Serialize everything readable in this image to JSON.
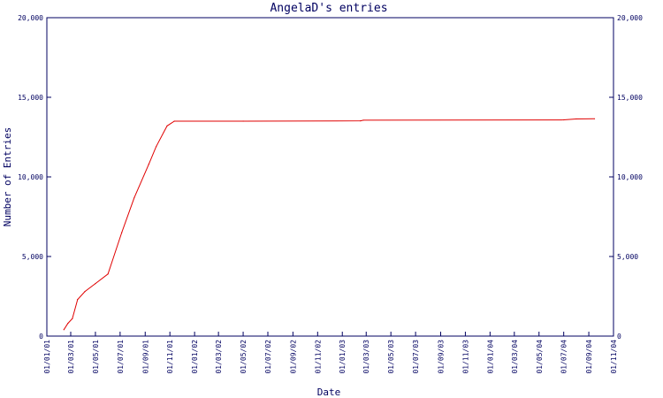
{
  "chart_data": {
    "type": "line",
    "title": "AngelaD's entries",
    "xlabel": "Date",
    "ylabel": "Number of Entries",
    "ylim": [
      0,
      20000
    ],
    "xlim": [
      "2001-01-01",
      "2004-11-01"
    ],
    "y_ticks": [
      {
        "value": 0,
        "label": "0"
      },
      {
        "value": 5000,
        "label": "5,000"
      },
      {
        "value": 10000,
        "label": "10,000"
      },
      {
        "value": 15000,
        "label": "15,000"
      },
      {
        "value": 20000,
        "label": "20,000"
      }
    ],
    "x_ticks": [
      {
        "date": "2001-01-01",
        "label": "01/01/01"
      },
      {
        "date": "2001-03-01",
        "label": "01/03/01"
      },
      {
        "date": "2001-05-01",
        "label": "01/05/01"
      },
      {
        "date": "2001-07-01",
        "label": "01/07/01"
      },
      {
        "date": "2001-09-01",
        "label": "01/09/01"
      },
      {
        "date": "2001-11-01",
        "label": "01/11/01"
      },
      {
        "date": "2002-01-01",
        "label": "01/01/02"
      },
      {
        "date": "2002-03-01",
        "label": "01/03/02"
      },
      {
        "date": "2002-05-01",
        "label": "01/05/02"
      },
      {
        "date": "2002-07-01",
        "label": "01/07/02"
      },
      {
        "date": "2002-09-01",
        "label": "01/09/02"
      },
      {
        "date": "2002-11-01",
        "label": "01/11/02"
      },
      {
        "date": "2003-01-01",
        "label": "01/01/03"
      },
      {
        "date": "2003-03-01",
        "label": "01/03/03"
      },
      {
        "date": "2003-05-01",
        "label": "01/05/03"
      },
      {
        "date": "2003-07-01",
        "label": "01/07/03"
      },
      {
        "date": "2003-09-01",
        "label": "01/09/03"
      },
      {
        "date": "2003-11-01",
        "label": "01/11/03"
      },
      {
        "date": "2004-01-01",
        "label": "01/01/04"
      },
      {
        "date": "2004-03-01",
        "label": "01/03/04"
      },
      {
        "date": "2004-05-01",
        "label": "01/05/04"
      },
      {
        "date": "2004-07-01",
        "label": "01/07/04"
      },
      {
        "date": "2004-09-01",
        "label": "01/09/04"
      },
      {
        "date": "2004-11-01",
        "label": "01/11/04"
      }
    ],
    "series": [
      {
        "color": "#e00000",
        "points": [
          {
            "x": "2001-02-12",
            "y": 400
          },
          {
            "x": "2001-02-22",
            "y": 800
          },
          {
            "x": "2001-03-05",
            "y": 1100
          },
          {
            "x": "2001-03-18",
            "y": 2300
          },
          {
            "x": "2001-04-05",
            "y": 2800
          },
          {
            "x": "2001-05-01",
            "y": 3300
          },
          {
            "x": "2001-06-01",
            "y": 3900
          },
          {
            "x": "2001-07-05",
            "y": 6500
          },
          {
            "x": "2001-08-05",
            "y": 8700
          },
          {
            "x": "2001-09-10",
            "y": 10800
          },
          {
            "x": "2001-09-28",
            "y": 11900
          },
          {
            "x": "2001-10-25",
            "y": 13200
          },
          {
            "x": "2001-11-12",
            "y": 13500
          },
          {
            "x": "2002-05-01",
            "y": 13500
          },
          {
            "x": "2003-02-15",
            "y": 13520
          },
          {
            "x": "2003-02-22",
            "y": 13560
          },
          {
            "x": "2004-07-01",
            "y": 13580
          },
          {
            "x": "2004-08-01",
            "y": 13640
          },
          {
            "x": "2004-09-15",
            "y": 13650
          }
        ]
      }
    ],
    "grid": false,
    "legend": false
  }
}
